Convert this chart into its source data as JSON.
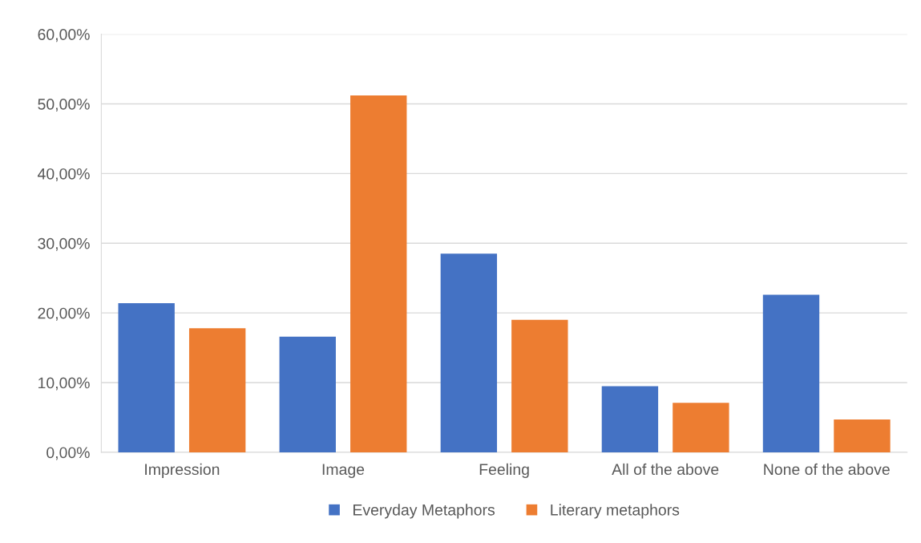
{
  "chart_data": {
    "type": "bar",
    "categories": [
      "Impression",
      "Image",
      "Feeling",
      "All of the above",
      "None of the above"
    ],
    "series": [
      {
        "name": "Everyday Metaphors",
        "color": "#4472c4",
        "values": [
          21.4,
          16.6,
          28.5,
          9.5,
          22.6
        ]
      },
      {
        "name": "Literary metaphors",
        "color": "#ed7d31",
        "values": [
          17.8,
          51.2,
          19.0,
          7.1,
          4.7
        ]
      }
    ],
    "ylim": [
      0,
      60
    ],
    "yticks": [
      {
        "value": 0,
        "label": "0,00%"
      },
      {
        "value": 10,
        "label": "10,00%"
      },
      {
        "value": 20,
        "label": "20,00%"
      },
      {
        "value": 30,
        "label": "30,00%"
      },
      {
        "value": 40,
        "label": "40,00%"
      },
      {
        "value": 50,
        "label": "50,00%"
      },
      {
        "value": 60,
        "label": "60,00%"
      }
    ],
    "grid": "y",
    "legend": "bottom"
  }
}
